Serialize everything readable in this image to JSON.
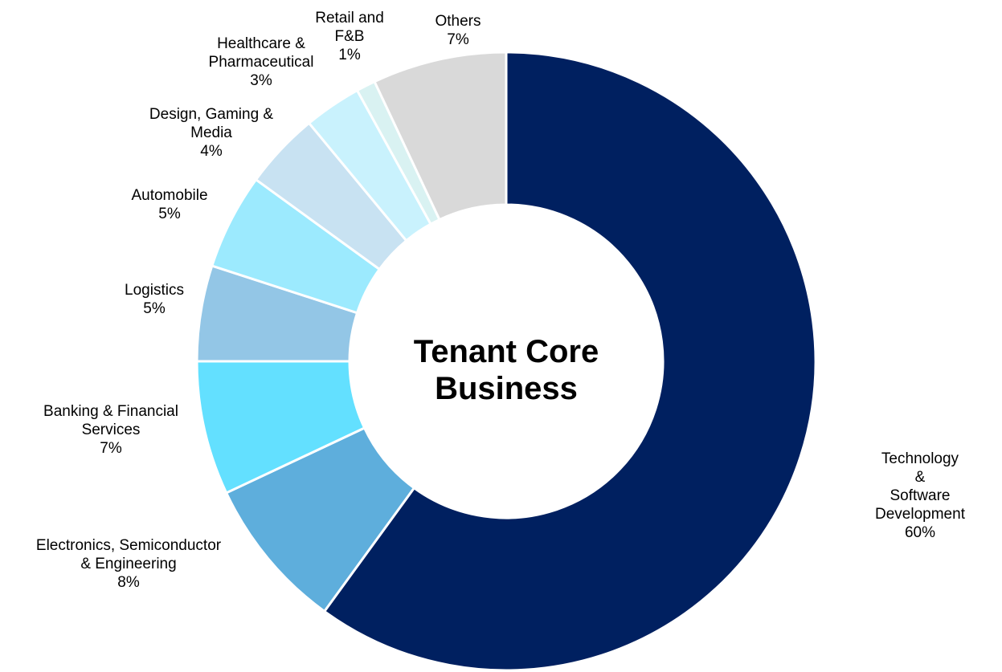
{
  "chart_data": {
    "type": "donut",
    "center_label": "Tenant Core\nBusiness",
    "categories": [
      "Technology &\nSoftware Development",
      "Electronics, Semiconductor\n& Engineering",
      "Banking & Financial\nServices",
      "Logistics",
      "Automobile",
      "Design, Gaming &\nMedia",
      "Healthcare &\nPharmaceutical",
      "Retail and\nF&B",
      "Others"
    ],
    "values": [
      60,
      8,
      7,
      5,
      5,
      4,
      3,
      1,
      7
    ],
    "value_labels": [
      "60%",
      "8%",
      "7%",
      "5%",
      "5%",
      "4%",
      "3%",
      "1%",
      "7%"
    ],
    "colors": [
      "#002060",
      "#5eaedc",
      "#63e0ff",
      "#93c6e6",
      "#9ceafe",
      "#c8e2f2",
      "#c9f2fd",
      "#d9f2f2",
      "#d9d9d9"
    ]
  }
}
